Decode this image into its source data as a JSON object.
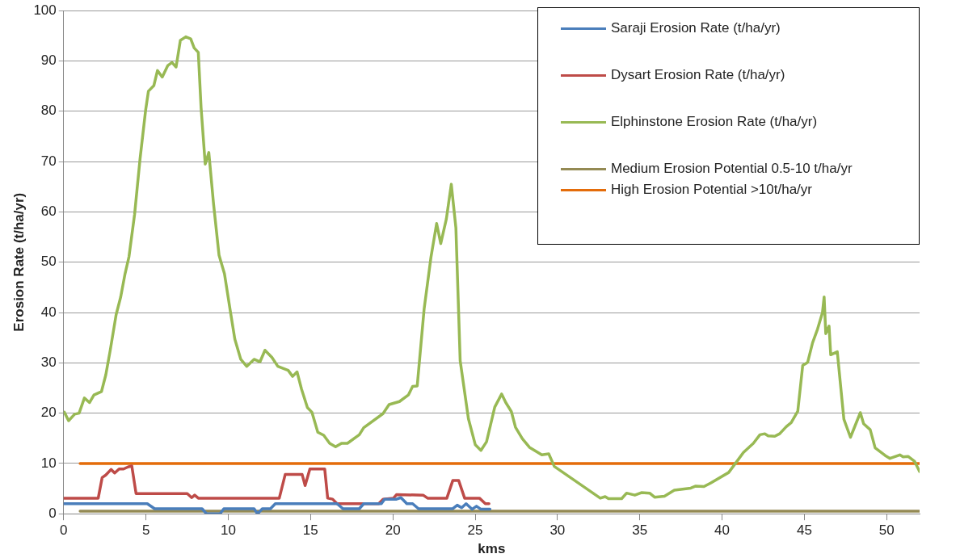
{
  "chart_data": {
    "type": "line",
    "xlabel": "kms",
    "ylabel": "Erosion Rate (t/ha/yr)",
    "xlim": [
      0,
      52
    ],
    "xticks": [
      0,
      5,
      10,
      15,
      20,
      25,
      30,
      35,
      40,
      45,
      50
    ],
    "ylim": [
      0,
      100
    ],
    "yticks": [
      0,
      10,
      20,
      30,
      40,
      50,
      60,
      70,
      80,
      90,
      100
    ],
    "grid": "y",
    "legend": "top right",
    "marker": "none",
    "line_style": "solid",
    "series": [
      {
        "name": "Saraji Erosion Rate (t/ha/yr)",
        "color": "#4a7ebb",
        "x": [
          0,
          5.08,
          5.53,
          8.41,
          8.68,
          9.5,
          9.73,
          11.57,
          11.78,
          12.07,
          12.56,
          12.86,
          13.73,
          16.61,
          16.97,
          17.96,
          18.23,
          19.3,
          19.5,
          20.22,
          20.49,
          20.85,
          21.2,
          21.56,
          23.64,
          23.91,
          24.18,
          24.45,
          24.81,
          25.08,
          25.35,
          25.9
        ],
        "values": [
          2,
          2,
          1,
          1,
          0,
          0,
          1,
          1,
          0,
          1,
          1,
          2,
          2,
          2,
          1,
          1,
          2,
          2,
          2.9,
          2.9,
          3.2,
          2,
          2,
          1,
          1,
          1.7,
          1.2,
          2,
          0.9,
          1.5,
          0.9,
          0.9
        ]
      },
      {
        "name": "Dysart Erosion Rate (t/ha/yr)",
        "color": "#be4b48",
        "x": [
          0,
          2.1,
          2.34,
          2.56,
          2.88,
          3.1,
          3.37,
          3.64,
          3.91,
          4.14,
          4.4,
          7.51,
          7.78,
          7.96,
          8.18,
          13.1,
          13.46,
          14.49,
          14.67,
          14.96,
          15.86,
          16.04,
          16.34,
          16.61,
          19.14,
          19.41,
          20.04,
          20.22,
          21.84,
          22.11,
          23.28,
          23.64,
          24.0,
          24.36,
          25.26,
          25.62,
          25.84
        ],
        "values": [
          3.1,
          3.1,
          7.2,
          7.7,
          8.8,
          8.1,
          8.9,
          8.9,
          9.3,
          9.5,
          4,
          4,
          3.2,
          3.7,
          3.1,
          3.1,
          7.8,
          7.8,
          5.6,
          8.9,
          8.9,
          3.1,
          2.9,
          2,
          2,
          2.9,
          3.1,
          3.8,
          3.7,
          3.1,
          3.1,
          6.6,
          6.6,
          3.1,
          3.1,
          2,
          2
        ]
      },
      {
        "name": "Elphinstone Erosion Rate (t/ha/yr)",
        "color": "#98b954",
        "x": [
          0.04,
          0.3,
          0.67,
          0.94,
          1.26,
          1.57,
          1.84,
          2.3,
          2.56,
          2.83,
          3.19,
          3.46,
          3.73,
          3.97,
          4.31,
          4.64,
          4.98,
          5.15,
          5.48,
          5.7,
          5.99,
          6.33,
          6.58,
          6.83,
          7.09,
          7.42,
          7.72,
          7.93,
          8.18,
          8.35,
          8.6,
          8.82,
          9.1,
          9.44,
          9.77,
          10.13,
          10.4,
          10.76,
          11.12,
          11.57,
          11.93,
          12.23,
          12.65,
          13.01,
          13.64,
          13.91,
          14.18,
          14.45,
          14.81,
          15.08,
          15.44,
          15.8,
          16.16,
          16.52,
          16.88,
          17.24,
          17.96,
          18.23,
          19.4,
          19.77,
          20.4,
          20.94,
          21.2,
          21.48,
          21.9,
          22.32,
          22.66,
          22.91,
          23.25,
          23.55,
          23.83,
          24.09,
          24.59,
          25.01,
          25.35,
          25.69,
          26.19,
          26.61,
          26.86,
          27.2,
          27.45,
          27.87,
          28.3,
          29.05,
          29.47,
          29.81,
          32.6,
          32.9,
          33.1,
          33.9,
          34.2,
          34.7,
          35.1,
          35.6,
          35.9,
          36.5,
          37.1,
          38.1,
          38.4,
          38.9,
          39.3,
          40.4,
          40.9,
          41.3,
          41.9,
          42.3,
          42.6,
          42.8,
          43.2,
          43.5,
          43.9,
          44.2,
          44.6,
          44.9,
          45.2,
          45.5,
          45.8,
          46.1,
          46.2,
          46.3,
          46.5,
          46.6,
          47.0,
          47.4,
          47.8,
          48.4,
          48.6,
          49.0,
          49.3,
          49.9,
          50.2,
          50.8,
          51.0,
          51.3,
          51.7,
          52.0
        ],
        "values": [
          20.2,
          18.5,
          19.8,
          20,
          23,
          22.1,
          23.6,
          24.3,
          27.6,
          32.5,
          39.6,
          43,
          47.7,
          51.1,
          59.5,
          70.5,
          80.2,
          84,
          85.1,
          88.1,
          86.8,
          89.1,
          89.7,
          88.8,
          94.1,
          94.8,
          94.4,
          92.6,
          91.7,
          80.7,
          69.5,
          71.8,
          61.8,
          51.4,
          47.7,
          40.2,
          34.7,
          30.7,
          29.3,
          30.7,
          30.2,
          32.5,
          31.1,
          29.3,
          28.5,
          27.3,
          28.2,
          24.8,
          21.1,
          20.2,
          16.2,
          15.6,
          14,
          13.3,
          14,
          14,
          15.7,
          17.1,
          19.9,
          21.7,
          22.3,
          23.6,
          25.3,
          25.4,
          40.7,
          51.1,
          57.7,
          53.7,
          58.6,
          65.5,
          56.8,
          30.4,
          18.9,
          13.7,
          12.6,
          14.3,
          21.2,
          23.8,
          22.1,
          20.3,
          17.2,
          14.9,
          13.2,
          11.7,
          11.9,
          9.4,
          3.1,
          3.4,
          3,
          3,
          4.1,
          3.7,
          4.2,
          4.1,
          3.3,
          3.5,
          4.7,
          5.1,
          5.5,
          5.4,
          6.1,
          8.2,
          10.4,
          12.2,
          14,
          15.7,
          15.9,
          15.5,
          15.4,
          15.9,
          17.3,
          18.1,
          20.4,
          29.5,
          30.1,
          34,
          36.7,
          40,
          43.1,
          35.8,
          37.3,
          31.6,
          32.2,
          18.8,
          15.2,
          20.1,
          17.9,
          16.7,
          13.1,
          11.6,
          11,
          11.7,
          11.3,
          11.4,
          10.4,
          8.4
        ]
      },
      {
        "name": "Medium Erosion Potential 0.5-10 t/ha/yr",
        "color": "#948a54",
        "x": [
          1,
          52
        ],
        "values": [
          0.5,
          0.5
        ]
      },
      {
        "name": "High Erosion Potential >10t/ha/yr",
        "color": "#e46c0a",
        "x": [
          1,
          52
        ],
        "values": [
          10,
          10
        ]
      }
    ]
  }
}
